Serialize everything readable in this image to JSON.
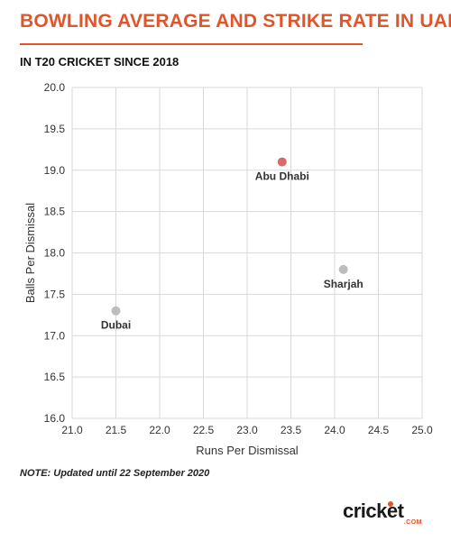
{
  "chart_data": {
    "type": "scatter",
    "title": "BOWLING AVERAGE AND STRIKE RATE IN UAE",
    "subtitle": "IN T20 CRICKET SINCE 2018",
    "xlabel": "Runs Per Dismissal",
    "ylabel": "Balls Per Dismissal",
    "xlim": [
      21.0,
      25.0
    ],
    "ylim": [
      16.0,
      20.0
    ],
    "xticks": [
      "21.0",
      "21.5",
      "22.0",
      "22.5",
      "23.0",
      "23.5",
      "24.0",
      "24.5",
      "25.0"
    ],
    "yticks": [
      "16.0",
      "16.5",
      "17.0",
      "17.5",
      "18.0",
      "18.5",
      "19.0",
      "19.5",
      "20.0"
    ],
    "grid": true,
    "points": [
      {
        "label": "Abu Dhabi",
        "x": 23.4,
        "y": 19.1,
        "color": "#d9696a"
      },
      {
        "label": "Sharjah",
        "x": 24.1,
        "y": 17.8,
        "color": "#bdbdbd"
      },
      {
        "label": "Dubai",
        "x": 21.5,
        "y": 17.3,
        "color": "#bdbdbd"
      }
    ]
  },
  "note": "NOTE: Updated until 22 September 2020",
  "logo": {
    "text": "cricket",
    "sub": ".COM",
    "accent": "#e0552a"
  },
  "colors": {
    "accent": "#e0552a",
    "grid": "#d9d9d9"
  }
}
